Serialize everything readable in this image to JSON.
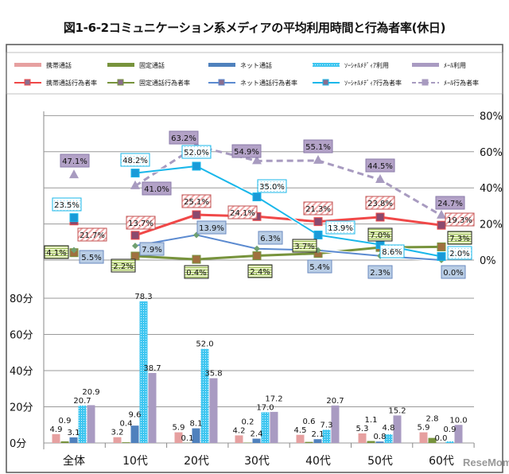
{
  "chart_data": [
    {
      "type": "line",
      "title": "図1-6-2コミュニケーション系メディアの平均利用時間と行為者率(休日)",
      "categories": [
        "全体",
        "10代",
        "20代",
        "30代",
        "40代",
        "50代",
        "60代"
      ],
      "ylim": [
        0,
        80
      ],
      "yticks": [
        "0%",
        "20%",
        "40%",
        "60%",
        "80%"
      ],
      "y_axis_side": "right",
      "grid": true,
      "series": [
        {
          "name": "携帯通話行為者率",
          "values": [
            21.7,
            13.7,
            25.1,
            24.1,
            21.3,
            23.8,
            19.3
          ],
          "labels": [
            "21.7%",
            "13.7%",
            "25.1%",
            "24.1%",
            "21.3%",
            "23.8%",
            "19.3%"
          ],
          "color": "#f04848"
        },
        {
          "name": "固定通話行為者率",
          "values": [
            4.1,
            2.2,
            0.4,
            2.4,
            3.7,
            7.0,
            7.3
          ],
          "labels": [
            "4.1%",
            "2.2%",
            "0.4%",
            "2.4%",
            "3.7%",
            "7.0%",
            "7.3%"
          ],
          "color": "#77933c"
        },
        {
          "name": "ネット通話行為者率",
          "values": [
            5.5,
            7.9,
            13.9,
            6.3,
            5.4,
            2.3,
            0.0
          ],
          "labels": [
            "5.5%",
            "7.9%",
            "13.9%",
            "6.3%",
            "5.4%",
            "2.3%",
            "0.0%"
          ],
          "color": "#5b8ad0"
        },
        {
          "name": "ソーシャルメディア行為者率",
          "values": [
            23.5,
            48.2,
            52.0,
            35.0,
            13.9,
            8.6,
            2.0
          ],
          "labels": [
            "23.5%",
            "48.2%",
            "52.0%",
            "35.0%",
            "13.9%",
            "8.6%",
            "2.0%"
          ],
          "color": "#1ab7ea"
        },
        {
          "name": "メール行為者率",
          "values": [
            47.1,
            41.0,
            63.2,
            54.9,
            55.1,
            44.5,
            24.7
          ],
          "labels": [
            "47.1%",
            "41.0%",
            "63.2%",
            "54.9%",
            "55.1%",
            "44.5%",
            "24.7%"
          ],
          "color": "#a89bc0"
        }
      ]
    },
    {
      "type": "bar",
      "categories": [
        "全体",
        "10代",
        "20代",
        "30代",
        "40代",
        "50代",
        "60代"
      ],
      "ylim": [
        0,
        80
      ],
      "yticks": [
        "0分",
        "20分",
        "40分",
        "60分",
        "80分"
      ],
      "grid": true,
      "series": [
        {
          "name": "携帯通話",
          "values": [
            4.9,
            3.2,
            5.9,
            4.2,
            4.5,
            5.3,
            5.9
          ],
          "labels": [
            "4.9",
            "3.2",
            "5.9",
            "4.2",
            "4.5",
            "5.3",
            "5.9"
          ],
          "color": "#e6a0a0"
        },
        {
          "name": "固定通話",
          "values": [
            0.9,
            0.4,
            0.1,
            0.2,
            0.6,
            1.1,
            2.8
          ],
          "labels": [
            "0.9",
            "0.4",
            "0.1",
            "0.2",
            "0.6",
            "1.1",
            "2.8"
          ],
          "color": "#77933c"
        },
        {
          "name": "ネット通話",
          "values": [
            3.1,
            9.6,
            8.1,
            2.4,
            2.1,
            0.8,
            0.0
          ],
          "labels": [
            "3.1",
            "9.6",
            "8.1",
            "2.4",
            "2.1",
            "0.8",
            "0.0"
          ],
          "color": "#4f81bd"
        },
        {
          "name": "ソーシャルメディア利用",
          "values": [
            20.7,
            78.3,
            52.0,
            17.0,
            7.3,
            4.8,
            0.9
          ],
          "labels": [
            "20.7",
            "78.3",
            "52.0",
            "17.0",
            "7.3",
            "4.8",
            "0.9"
          ],
          "color": "#3fc6f0"
        },
        {
          "name": "メール利用",
          "values": [
            20.9,
            38.7,
            35.8,
            17.2,
            20.7,
            15.2,
            10.0
          ],
          "labels": [
            "20.9",
            "38.7",
            "35.8",
            "17.2",
            "20.7",
            "15.2",
            "10.0"
          ],
          "color": "#a99bc2"
        }
      ]
    }
  ],
  "legend": {
    "row1": [
      "携帯通話",
      "固定通話",
      "ネット通話",
      "ｿｰｼｬﾙﾒﾃﾞｨｱ利用",
      "ﾒｰﾙ利用"
    ],
    "row2": [
      "携帯通話行為者率",
      "固定通話行為者率",
      "ネット通話行為者率",
      "ｿｰｼｬﾙﾒﾃﾞｨｱ行為者率",
      "ﾒｰﾙ行為者率"
    ]
  },
  "watermark": "ReseMom"
}
